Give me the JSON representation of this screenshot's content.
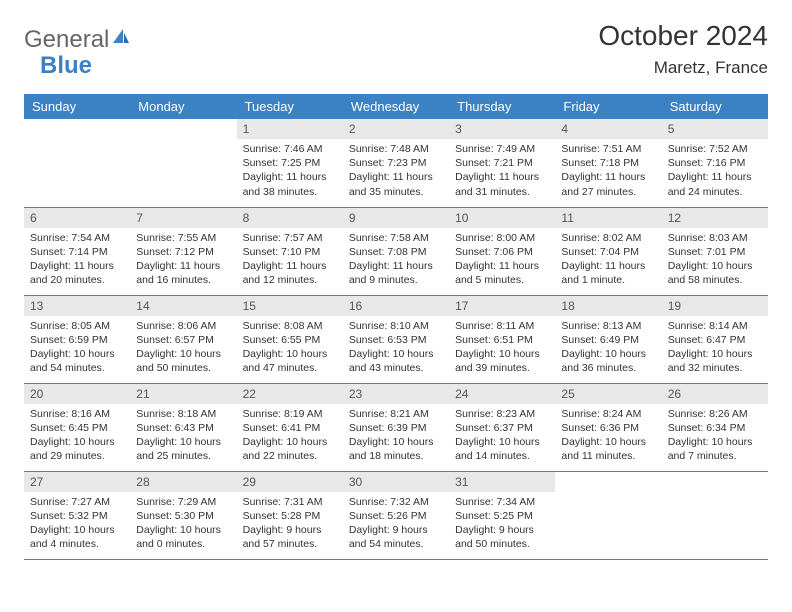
{
  "brand": {
    "part1": "General",
    "part2": "Blue"
  },
  "title": "October 2024",
  "location": "Maretz, France",
  "colors": {
    "header_bg": "#3a82c4",
    "header_text": "#ffffff",
    "daynum_bg": "#e8e8e8",
    "border": "#3a82c4",
    "text": "#333333"
  },
  "day_headers": [
    "Sunday",
    "Monday",
    "Tuesday",
    "Wednesday",
    "Thursday",
    "Friday",
    "Saturday"
  ],
  "weeks": [
    [
      null,
      null,
      {
        "n": "1",
        "sr": "Sunrise: 7:46 AM",
        "ss": "Sunset: 7:25 PM",
        "dl": "Daylight: 11 hours and 38 minutes."
      },
      {
        "n": "2",
        "sr": "Sunrise: 7:48 AM",
        "ss": "Sunset: 7:23 PM",
        "dl": "Daylight: 11 hours and 35 minutes."
      },
      {
        "n": "3",
        "sr": "Sunrise: 7:49 AM",
        "ss": "Sunset: 7:21 PM",
        "dl": "Daylight: 11 hours and 31 minutes."
      },
      {
        "n": "4",
        "sr": "Sunrise: 7:51 AM",
        "ss": "Sunset: 7:18 PM",
        "dl": "Daylight: 11 hours and 27 minutes."
      },
      {
        "n": "5",
        "sr": "Sunrise: 7:52 AM",
        "ss": "Sunset: 7:16 PM",
        "dl": "Daylight: 11 hours and 24 minutes."
      }
    ],
    [
      {
        "n": "6",
        "sr": "Sunrise: 7:54 AM",
        "ss": "Sunset: 7:14 PM",
        "dl": "Daylight: 11 hours and 20 minutes."
      },
      {
        "n": "7",
        "sr": "Sunrise: 7:55 AM",
        "ss": "Sunset: 7:12 PM",
        "dl": "Daylight: 11 hours and 16 minutes."
      },
      {
        "n": "8",
        "sr": "Sunrise: 7:57 AM",
        "ss": "Sunset: 7:10 PM",
        "dl": "Daylight: 11 hours and 12 minutes."
      },
      {
        "n": "9",
        "sr": "Sunrise: 7:58 AM",
        "ss": "Sunset: 7:08 PM",
        "dl": "Daylight: 11 hours and 9 minutes."
      },
      {
        "n": "10",
        "sr": "Sunrise: 8:00 AM",
        "ss": "Sunset: 7:06 PM",
        "dl": "Daylight: 11 hours and 5 minutes."
      },
      {
        "n": "11",
        "sr": "Sunrise: 8:02 AM",
        "ss": "Sunset: 7:04 PM",
        "dl": "Daylight: 11 hours and 1 minute."
      },
      {
        "n": "12",
        "sr": "Sunrise: 8:03 AM",
        "ss": "Sunset: 7:01 PM",
        "dl": "Daylight: 10 hours and 58 minutes."
      }
    ],
    [
      {
        "n": "13",
        "sr": "Sunrise: 8:05 AM",
        "ss": "Sunset: 6:59 PM",
        "dl": "Daylight: 10 hours and 54 minutes."
      },
      {
        "n": "14",
        "sr": "Sunrise: 8:06 AM",
        "ss": "Sunset: 6:57 PM",
        "dl": "Daylight: 10 hours and 50 minutes."
      },
      {
        "n": "15",
        "sr": "Sunrise: 8:08 AM",
        "ss": "Sunset: 6:55 PM",
        "dl": "Daylight: 10 hours and 47 minutes."
      },
      {
        "n": "16",
        "sr": "Sunrise: 8:10 AM",
        "ss": "Sunset: 6:53 PM",
        "dl": "Daylight: 10 hours and 43 minutes."
      },
      {
        "n": "17",
        "sr": "Sunrise: 8:11 AM",
        "ss": "Sunset: 6:51 PM",
        "dl": "Daylight: 10 hours and 39 minutes."
      },
      {
        "n": "18",
        "sr": "Sunrise: 8:13 AM",
        "ss": "Sunset: 6:49 PM",
        "dl": "Daylight: 10 hours and 36 minutes."
      },
      {
        "n": "19",
        "sr": "Sunrise: 8:14 AM",
        "ss": "Sunset: 6:47 PM",
        "dl": "Daylight: 10 hours and 32 minutes."
      }
    ],
    [
      {
        "n": "20",
        "sr": "Sunrise: 8:16 AM",
        "ss": "Sunset: 6:45 PM",
        "dl": "Daylight: 10 hours and 29 minutes."
      },
      {
        "n": "21",
        "sr": "Sunrise: 8:18 AM",
        "ss": "Sunset: 6:43 PM",
        "dl": "Daylight: 10 hours and 25 minutes."
      },
      {
        "n": "22",
        "sr": "Sunrise: 8:19 AM",
        "ss": "Sunset: 6:41 PM",
        "dl": "Daylight: 10 hours and 22 minutes."
      },
      {
        "n": "23",
        "sr": "Sunrise: 8:21 AM",
        "ss": "Sunset: 6:39 PM",
        "dl": "Daylight: 10 hours and 18 minutes."
      },
      {
        "n": "24",
        "sr": "Sunrise: 8:23 AM",
        "ss": "Sunset: 6:37 PM",
        "dl": "Daylight: 10 hours and 14 minutes."
      },
      {
        "n": "25",
        "sr": "Sunrise: 8:24 AM",
        "ss": "Sunset: 6:36 PM",
        "dl": "Daylight: 10 hours and 11 minutes."
      },
      {
        "n": "26",
        "sr": "Sunrise: 8:26 AM",
        "ss": "Sunset: 6:34 PM",
        "dl": "Daylight: 10 hours and 7 minutes."
      }
    ],
    [
      {
        "n": "27",
        "sr": "Sunrise: 7:27 AM",
        "ss": "Sunset: 5:32 PM",
        "dl": "Daylight: 10 hours and 4 minutes."
      },
      {
        "n": "28",
        "sr": "Sunrise: 7:29 AM",
        "ss": "Sunset: 5:30 PM",
        "dl": "Daylight: 10 hours and 0 minutes."
      },
      {
        "n": "29",
        "sr": "Sunrise: 7:31 AM",
        "ss": "Sunset: 5:28 PM",
        "dl": "Daylight: 9 hours and 57 minutes."
      },
      {
        "n": "30",
        "sr": "Sunrise: 7:32 AM",
        "ss": "Sunset: 5:26 PM",
        "dl": "Daylight: 9 hours and 54 minutes."
      },
      {
        "n": "31",
        "sr": "Sunrise: 7:34 AM",
        "ss": "Sunset: 5:25 PM",
        "dl": "Daylight: 9 hours and 50 minutes."
      },
      null,
      null
    ]
  ]
}
